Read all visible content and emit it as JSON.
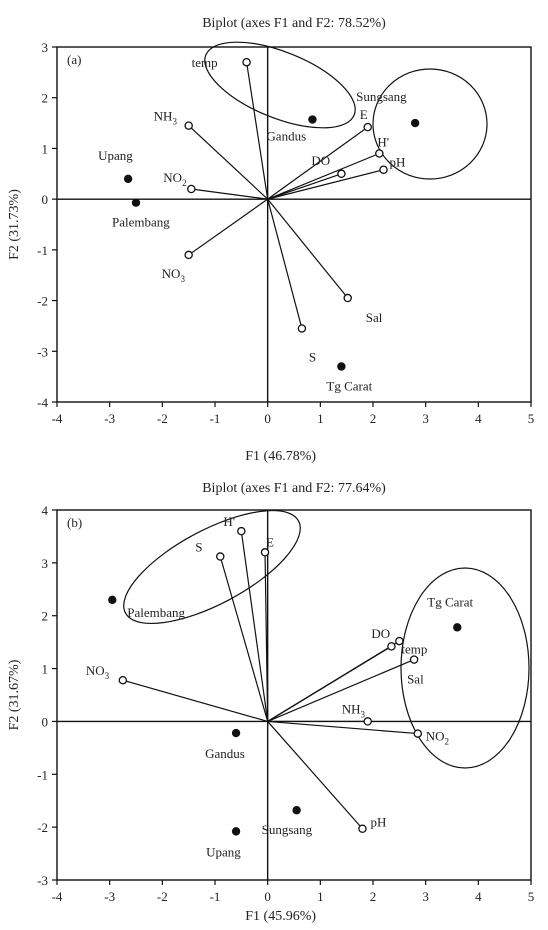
{
  "chart_data": [
    {
      "type": "scatter",
      "panel_label": "(a)",
      "title": "Biplot (axes F1 and F2: 78.52%)",
      "xlabel": "F1 (46.78%)",
      "ylabel": "F2 (31.73%)",
      "xlim": [
        -4,
        5
      ],
      "ylim": [
        -4,
        3
      ],
      "xticks": [
        "-4",
        "-3",
        "-2",
        "-1",
        "0",
        "1",
        "2",
        "3",
        "4",
        "5"
      ],
      "yticks": [
        "3",
        "2",
        "1",
        "0",
        "-1",
        "-2",
        "-3",
        "-4"
      ],
      "variables": [
        {
          "name": "temp",
          "x": -0.4,
          "y": 2.7
        },
        {
          "name": "NH",
          "sub": "3",
          "x": -1.5,
          "y": 1.45
        },
        {
          "name": "NO",
          "sub": "2",
          "x": -1.45,
          "y": 0.2
        },
        {
          "name": "NO",
          "sub": "3",
          "x": -1.5,
          "y": -1.1
        },
        {
          "name": "E",
          "x": 1.9,
          "y": 1.42
        },
        {
          "name": "H'",
          "x": 2.12,
          "y": 0.9
        },
        {
          "name": "pH",
          "x": 2.2,
          "y": 0.58
        },
        {
          "name": "DO",
          "x": 1.4,
          "y": 0.5
        },
        {
          "name": "Sal",
          "x": 1.52,
          "y": -1.95
        },
        {
          "name": "S",
          "x": 0.65,
          "y": -2.55
        }
      ],
      "sites": [
        {
          "name": "Gandus",
          "x": 0.85,
          "y": 1.57
        },
        {
          "name": "Sungsang",
          "x": 2.8,
          "y": 1.5
        },
        {
          "name": "Upang",
          "x": -2.65,
          "y": 0.4
        },
        {
          "name": "Palembang",
          "x": -2.5,
          "y": -0.07
        },
        {
          "name": "Tg Carat",
          "x": 1.4,
          "y": -3.3
        }
      ]
    },
    {
      "type": "scatter",
      "panel_label": "(b)",
      "title": "Biplot (axes F1 and F2: 77.64%)",
      "xlabel": "F1 (45.96%)",
      "ylabel": "F2 (31.67%)",
      "xlim": [
        -4,
        5
      ],
      "ylim": [
        -3,
        4
      ],
      "xticks": [
        "-4",
        "-3",
        "-2",
        "-1",
        "0",
        "1",
        "2",
        "3",
        "4",
        "5"
      ],
      "yticks": [
        "4",
        "3",
        "2",
        "1",
        "0",
        "-1",
        "-2",
        "-3"
      ],
      "variables": [
        {
          "name": "H'",
          "x": -0.5,
          "y": 3.6
        },
        {
          "name": "E",
          "x": -0.05,
          "y": 3.2
        },
        {
          "name": "S",
          "x": -0.9,
          "y": 3.12
        },
        {
          "name": "NO",
          "sub": "3",
          "x": -2.75,
          "y": 0.78
        },
        {
          "name": "DO",
          "x": 2.5,
          "y": 1.52
        },
        {
          "name": "temp",
          "x": 2.35,
          "y": 1.42
        },
        {
          "name": "Sal",
          "x": 2.78,
          "y": 1.17
        },
        {
          "name": "NH",
          "sub": "3",
          "x": 1.9,
          "y": 0.0
        },
        {
          "name": "NO",
          "sub": "2",
          "x": 2.85,
          "y": -0.23
        },
        {
          "name": "pH",
          "x": 1.8,
          "y": -2.03
        }
      ],
      "sites": [
        {
          "name": "Palembang",
          "x": -2.95,
          "y": 2.3
        },
        {
          "name": "Tg Carat",
          "x": 3.6,
          "y": 1.78
        },
        {
          "name": "Gandus",
          "x": -0.6,
          "y": -0.22
        },
        {
          "name": "Sungsang",
          "x": 0.55,
          "y": -1.68
        },
        {
          "name": "Upang",
          "x": -0.6,
          "y": -2.08
        }
      ]
    }
  ]
}
